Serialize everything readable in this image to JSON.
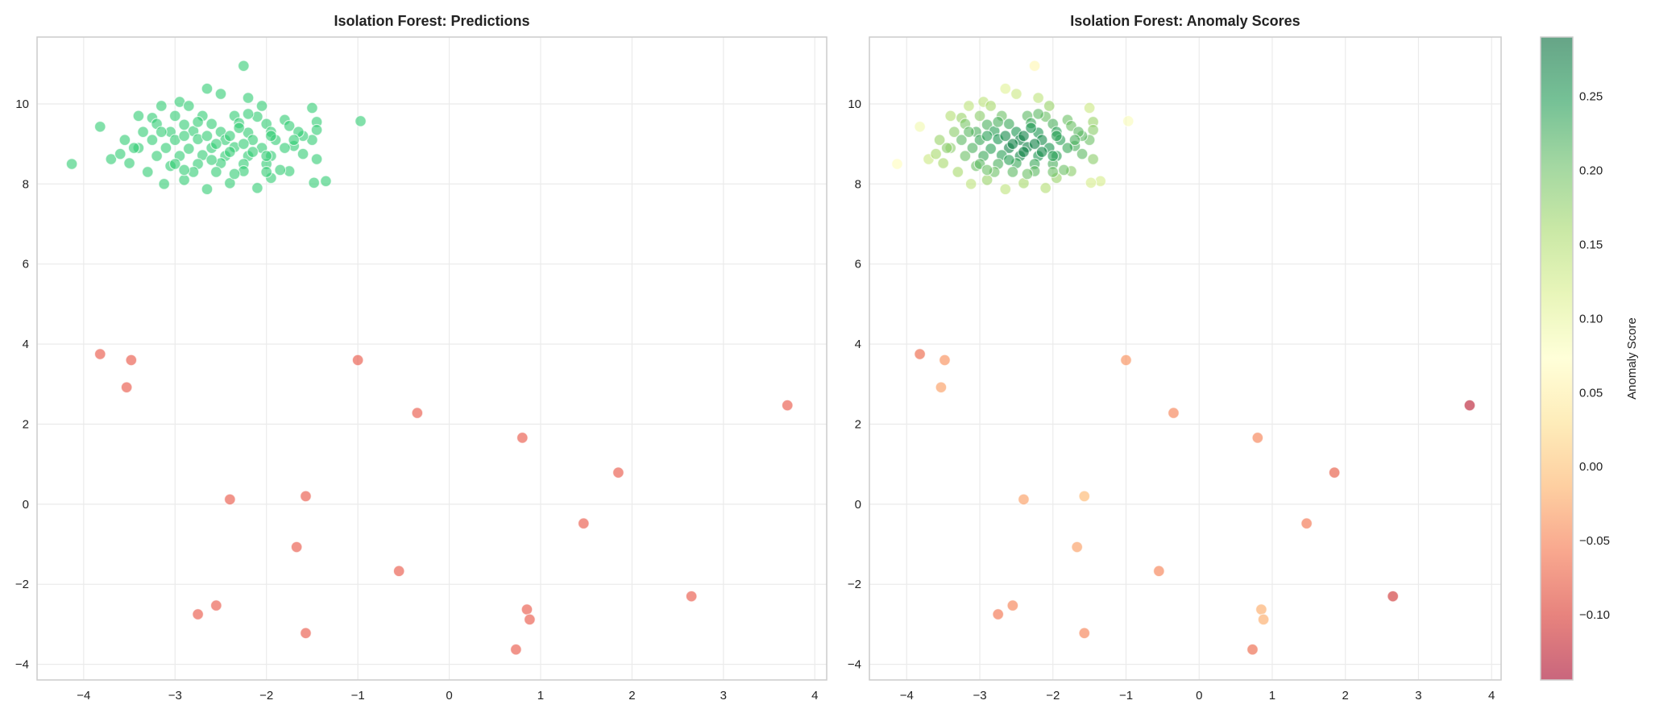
{
  "chart_data": [
    {
      "type": "scatter",
      "title": "Isolation Forest: Predictions",
      "xlim": [
        -4.51,
        4.13
      ],
      "ylim": [
        -4.39,
        11.67
      ],
      "xticks": [
        -4,
        -3,
        -2,
        -1,
        0,
        1,
        2,
        3,
        4
      ],
      "yticks": [
        -4,
        -2,
        0,
        2,
        4,
        6,
        8,
        10
      ],
      "grid": true,
      "colors": {
        "inlier": "#2ecc71",
        "outlier": "#e74c3c"
      },
      "encoding": "color by prediction (inlier / outlier)"
    },
    {
      "type": "scatter",
      "title": "Isolation Forest: Anomaly Scores",
      "xlim": [
        -4.51,
        4.13
      ],
      "ylim": [
        -4.39,
        11.67
      ],
      "xticks": [
        -4,
        -3,
        -2,
        -1,
        0,
        1,
        2,
        3,
        4
      ],
      "yticks": [
        -4,
        -2,
        0,
        2,
        4,
        6,
        8,
        10
      ],
      "grid": true,
      "colormap": "RdYlGn",
      "colorbar": {
        "label": "Anomaly Score",
        "range": [
          -0.144,
          0.29
        ],
        "ticks": [
          -0.1,
          -0.05,
          0.0,
          0.05,
          0.1,
          0.15,
          0.2,
          0.25
        ],
        "tick_labels": [
          "−0.10",
          "−0.05",
          "0.00",
          "0.05",
          "0.10",
          "0.15",
          "0.20",
          "0.25"
        ]
      }
    }
  ],
  "points": {
    "inliers": [
      [
        -4.13,
        8.5,
        0.07
      ],
      [
        -3.82,
        9.43,
        0.09
      ],
      [
        -3.7,
        8.62,
        0.13
      ],
      [
        -3.5,
        8.52,
        0.16
      ],
      [
        -3.55,
        9.1,
        0.17
      ],
      [
        -3.4,
        9.7,
        0.15
      ],
      [
        -3.25,
        9.65,
        0.17
      ],
      [
        -3.15,
        9.95,
        0.14
      ],
      [
        -3.12,
        8.0,
        0.14
      ],
      [
        -2.95,
        10.05,
        0.14
      ],
      [
        -2.85,
        9.95,
        0.16
      ],
      [
        -2.65,
        10.38,
        0.11
      ],
      [
        -2.5,
        10.25,
        0.13
      ],
      [
        -2.25,
        10.95,
        0.06
      ],
      [
        -2.2,
        10.15,
        0.14
      ],
      [
        -2.05,
        9.95,
        0.17
      ],
      [
        -1.8,
        9.6,
        0.2
      ],
      [
        -1.5,
        9.9,
        0.13
      ],
      [
        -1.45,
        9.55,
        0.17
      ],
      [
        -1.45,
        9.35,
        0.18
      ],
      [
        -0.97,
        9.57,
        0.08
      ],
      [
        -1.35,
        8.07,
        0.12
      ],
      [
        -1.48,
        8.03,
        0.12
      ],
      [
        -1.45,
        8.62,
        0.18
      ],
      [
        -1.5,
        9.1,
        0.2
      ],
      [
        -2.1,
        7.9,
        0.15
      ],
      [
        -2.4,
        8.02,
        0.16
      ],
      [
        -2.65,
        7.87,
        0.14
      ],
      [
        -2.9,
        8.1,
        0.17
      ],
      [
        -1.75,
        8.32,
        0.18
      ],
      [
        -1.7,
        8.95,
        0.22
      ],
      [
        -1.95,
        8.15,
        0.17
      ],
      [
        -3.6,
        8.75,
        0.16
      ],
      [
        -3.3,
        8.3,
        0.16
      ],
      [
        -3.05,
        8.45,
        0.2
      ],
      [
        -1.6,
        9.2,
        0.21
      ],
      [
        -1.85,
        8.35,
        0.2
      ],
      [
        -3.0,
        9.7,
        0.18
      ],
      [
        -2.7,
        9.7,
        0.2
      ],
      [
        -2.35,
        9.7,
        0.21
      ],
      [
        -2.1,
        9.68,
        0.2
      ],
      [
        -3.2,
        9.5,
        0.19
      ],
      [
        -2.9,
        9.48,
        0.22
      ],
      [
        -2.6,
        9.5,
        0.23
      ],
      [
        -2.3,
        9.52,
        0.23
      ],
      [
        -2.0,
        9.5,
        0.22
      ],
      [
        -1.75,
        9.45,
        0.2
      ],
      [
        -3.35,
        9.3,
        0.18
      ],
      [
        -3.05,
        9.3,
        0.22
      ],
      [
        -2.8,
        9.32,
        0.24
      ],
      [
        -2.5,
        9.3,
        0.25
      ],
      [
        -2.2,
        9.28,
        0.25
      ],
      [
        -1.95,
        9.3,
        0.24
      ],
      [
        -1.65,
        9.3,
        0.21
      ],
      [
        -3.25,
        9.1,
        0.21
      ],
      [
        -3.0,
        9.1,
        0.23
      ],
      [
        -2.75,
        9.12,
        0.25
      ],
      [
        -2.45,
        9.1,
        0.27
      ],
      [
        -2.15,
        9.1,
        0.26
      ],
      [
        -1.9,
        9.1,
        0.24
      ],
      [
        -1.7,
        9.1,
        0.22
      ],
      [
        -3.4,
        8.9,
        0.18
      ],
      [
        -3.1,
        8.9,
        0.22
      ],
      [
        -2.85,
        8.88,
        0.24
      ],
      [
        -2.6,
        8.9,
        0.27
      ],
      [
        -2.35,
        8.92,
        0.27
      ],
      [
        -2.05,
        8.9,
        0.25
      ],
      [
        -1.8,
        8.9,
        0.23
      ],
      [
        -3.2,
        8.7,
        0.2
      ],
      [
        -2.95,
        8.7,
        0.23
      ],
      [
        -2.7,
        8.72,
        0.24
      ],
      [
        -2.45,
        8.7,
        0.26
      ],
      [
        -2.2,
        8.7,
        0.25
      ],
      [
        -1.95,
        8.7,
        0.24
      ],
      [
        -3.0,
        8.5,
        0.21
      ],
      [
        -2.75,
        8.5,
        0.22
      ],
      [
        -2.5,
        8.52,
        0.23
      ],
      [
        -2.25,
        8.5,
        0.23
      ],
      [
        -2.0,
        8.5,
        0.22
      ],
      [
        -2.8,
        8.3,
        0.2
      ],
      [
        -2.55,
        8.3,
        0.21
      ],
      [
        -2.25,
        8.32,
        0.21
      ],
      [
        -2.0,
        8.3,
        0.2
      ],
      [
        -2.55,
        9.0,
        0.27
      ],
      [
        -2.25,
        9.0,
        0.27
      ],
      [
        -2.4,
        9.2,
        0.27
      ],
      [
        -2.4,
        8.8,
        0.27
      ],
      [
        -2.65,
        9.2,
        0.26
      ],
      [
        -2.15,
        8.8,
        0.26
      ],
      [
        -2.9,
        9.2,
        0.24
      ],
      [
        -1.95,
        9.2,
        0.24
      ],
      [
        -2.6,
        8.6,
        0.24
      ],
      [
        -2.3,
        9.4,
        0.25
      ],
      [
        -3.15,
        9.3,
        0.21
      ],
      [
        -2.0,
        8.7,
        0.24
      ],
      [
        -2.75,
        9.55,
        0.22
      ],
      [
        -2.2,
        9.75,
        0.21
      ],
      [
        -3.45,
        8.9,
        0.18
      ],
      [
        -1.6,
        8.75,
        0.21
      ],
      [
        -2.9,
        8.35,
        0.2
      ],
      [
        -2.35,
        8.25,
        0.2
      ]
    ],
    "outliers": [
      [
        -3.82,
        3.75,
        -0.07
      ],
      [
        -3.48,
        3.6,
        -0.04
      ],
      [
        -3.53,
        2.92,
        -0.03
      ],
      [
        -1.0,
        3.6,
        -0.04
      ],
      [
        -0.35,
        2.28,
        -0.05
      ],
      [
        0.8,
        1.66,
        -0.05
      ],
      [
        3.7,
        2.47,
        -0.13
      ],
      [
        1.85,
        0.79,
        -0.08
      ],
      [
        -2.4,
        0.12,
        -0.03
      ],
      [
        -1.57,
        0.2,
        -0.01
      ],
      [
        1.47,
        -0.48,
        -0.06
      ],
      [
        -1.67,
        -1.07,
        -0.03
      ],
      [
        -0.55,
        -1.67,
        -0.05
      ],
      [
        2.65,
        -2.3,
        -0.11
      ],
      [
        -2.75,
        -2.75,
        -0.06
      ],
      [
        -2.55,
        -2.53,
        -0.05
      ],
      [
        0.85,
        -2.63,
        -0.02
      ],
      [
        0.88,
        -2.88,
        -0.02
      ],
      [
        -1.57,
        -3.22,
        -0.05
      ],
      [
        0.73,
        -3.63,
        -0.07
      ]
    ]
  }
}
